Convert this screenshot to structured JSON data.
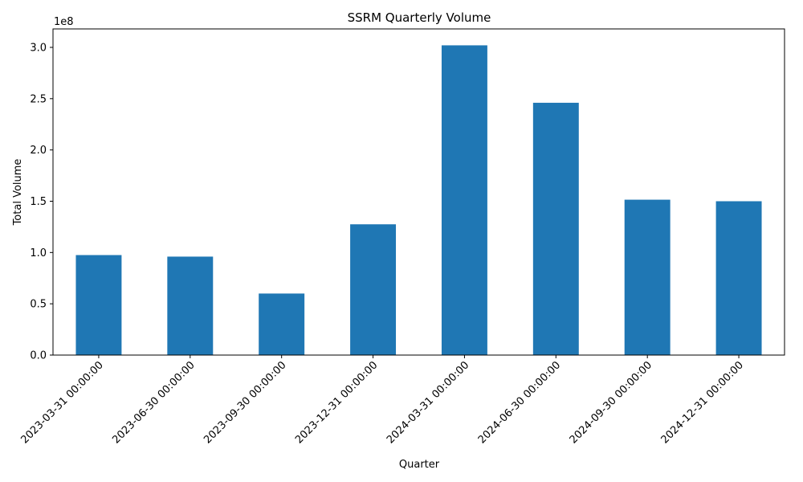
{
  "chart_data": {
    "type": "bar",
    "title": "SSRM Quarterly Volume",
    "xlabel": "Quarter",
    "ylabel": "Total Volume",
    "y_offset_label": "1e8",
    "categories": [
      "2023-03-31 00:00:00",
      "2023-06-30 00:00:00",
      "2023-09-30 00:00:00",
      "2023-12-31 00:00:00",
      "2024-03-31 00:00:00",
      "2024-06-30 00:00:00",
      "2024-09-30 00:00:00",
      "2024-12-31 00:00:00"
    ],
    "values": [
      97500000,
      96000000,
      60000000,
      127500000,
      302000000,
      246000000,
      151500000,
      150000000
    ],
    "y_ticks": [
      0.0,
      0.5,
      1.0,
      1.5,
      2.0,
      2.5,
      3.0
    ],
    "y_tick_labels": [
      "0.0",
      "0.5",
      "1.0",
      "1.5",
      "2.0",
      "2.5",
      "3.0"
    ],
    "y_scale": 100000000,
    "ylim": [
      0,
      3.18
    ],
    "grid": false,
    "legend": "none",
    "bar_color": "#1f77b4"
  }
}
